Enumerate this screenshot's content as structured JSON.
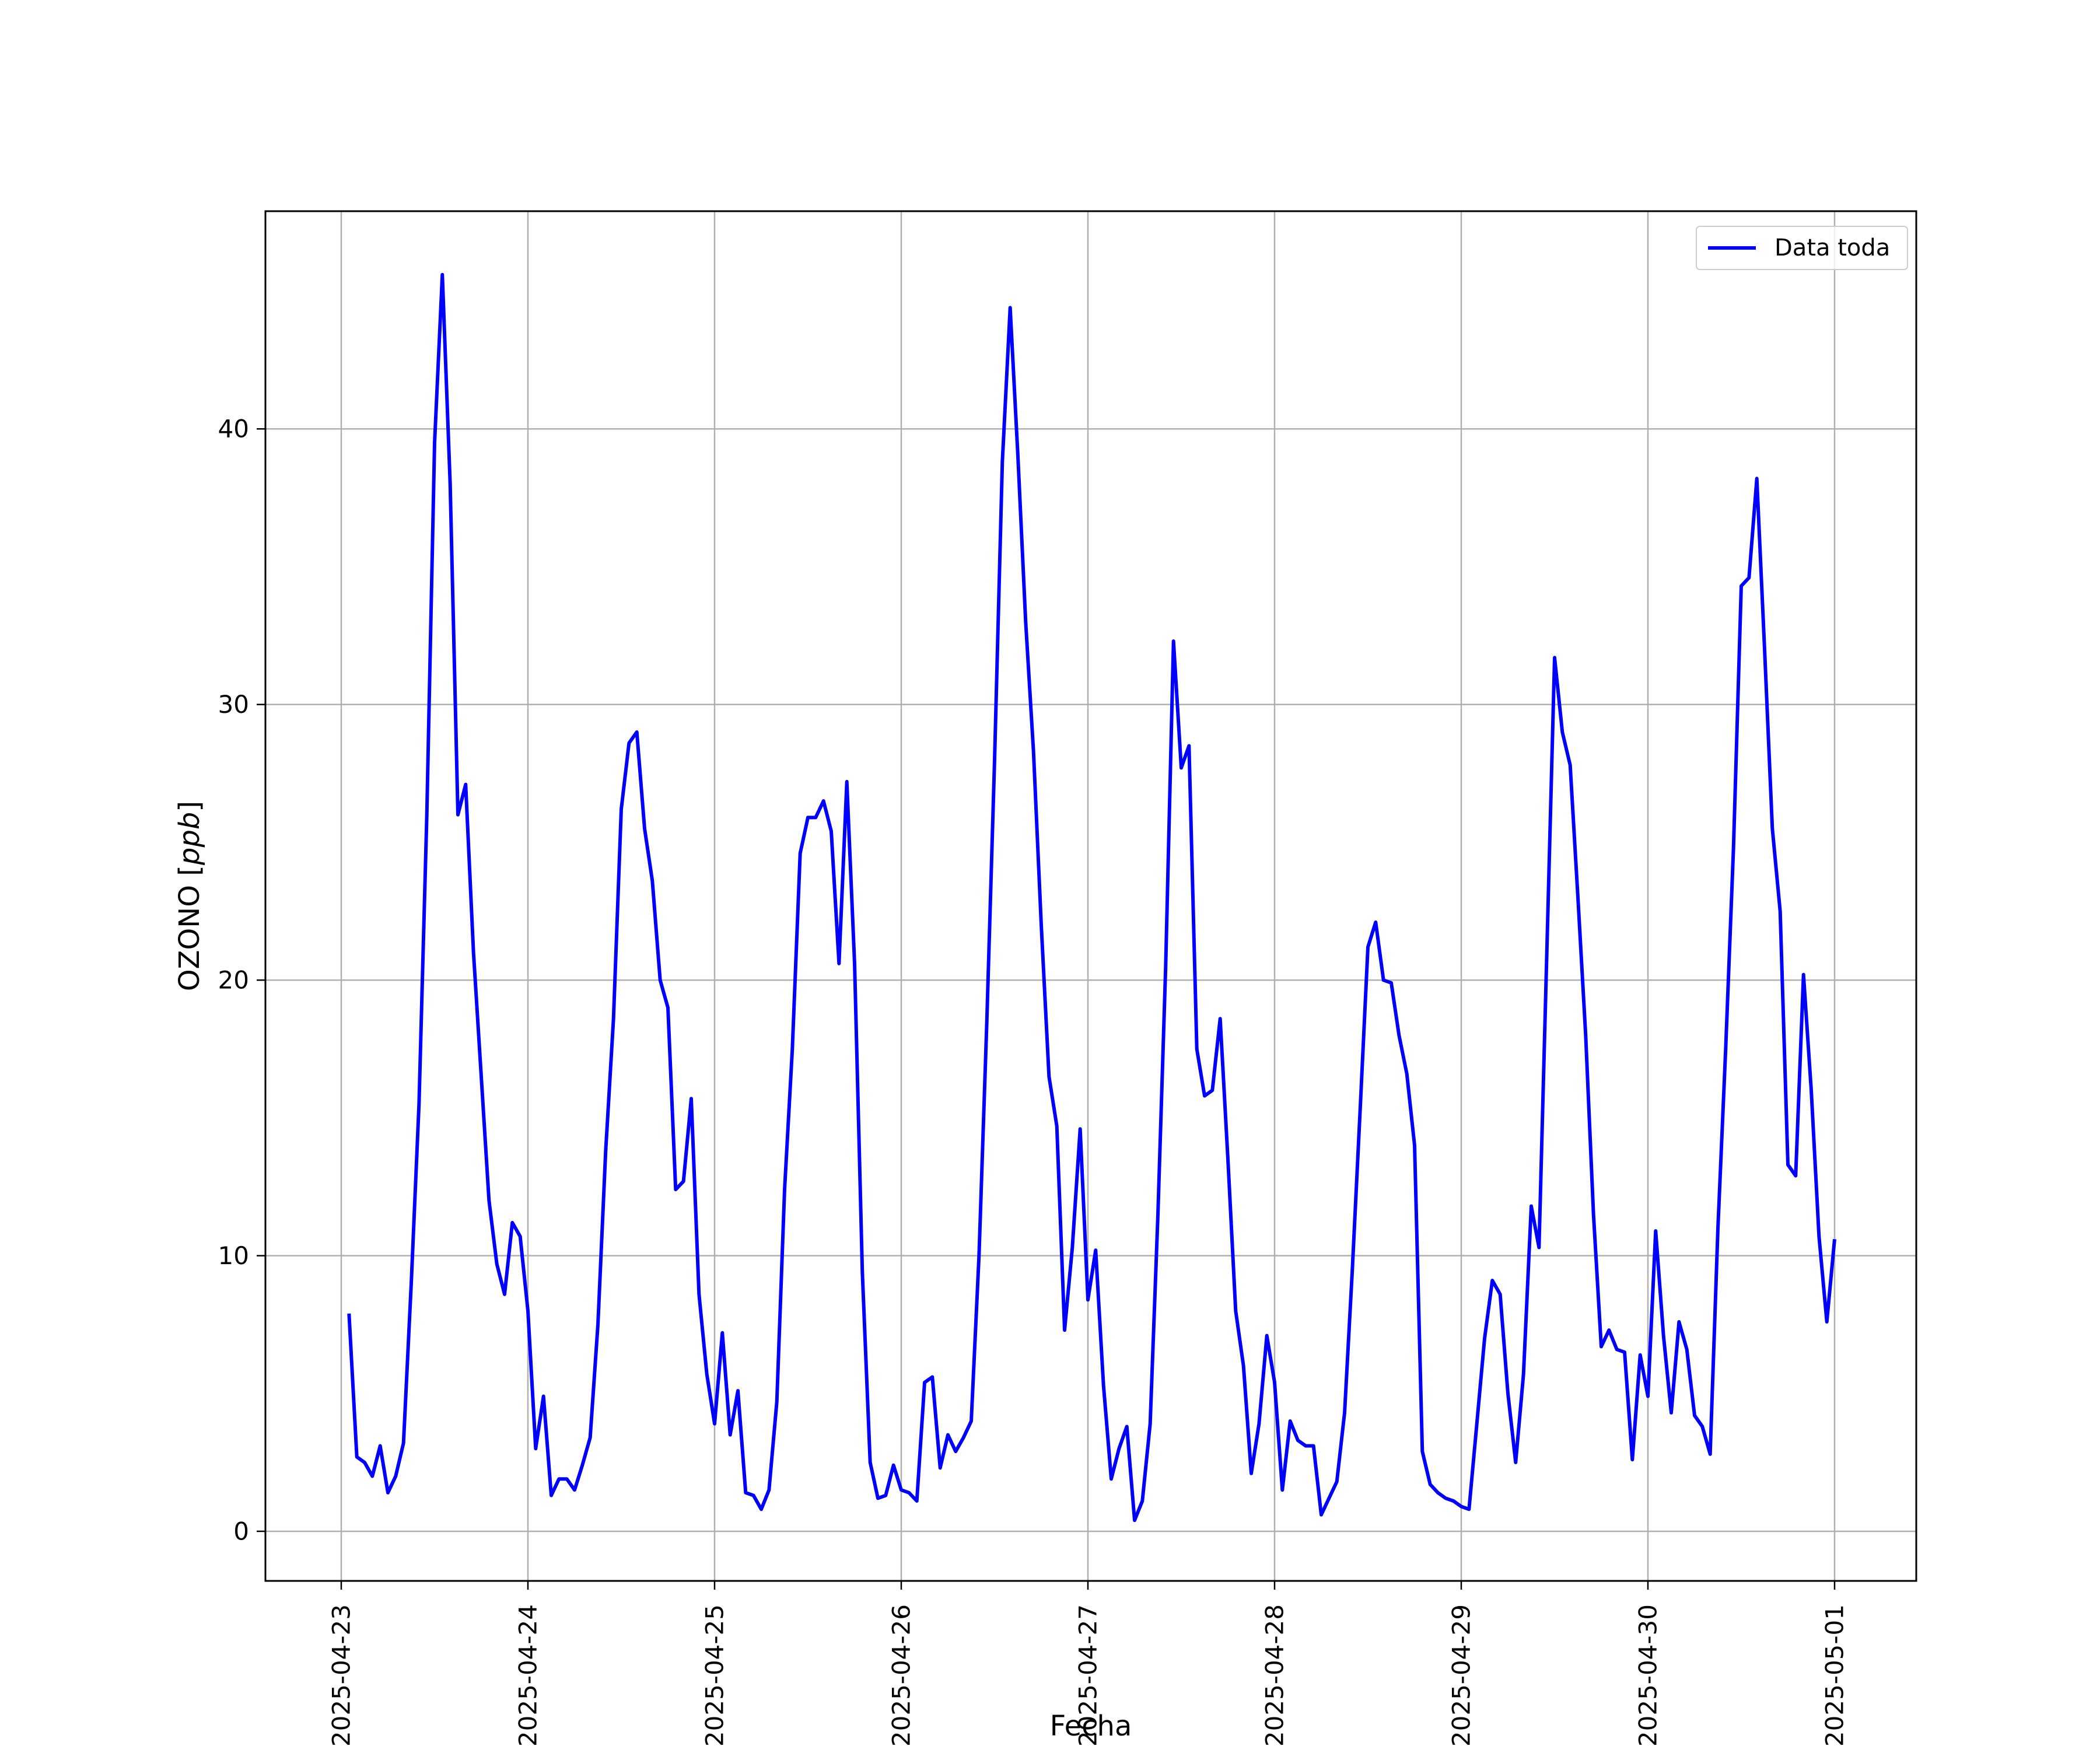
{
  "chart_data": {
    "type": "line",
    "xlabel": "Fecha",
    "ylabel": "OZONO [ppb]",
    "ylabel_parts": {
      "prefix": "OZONO [",
      "unit": "ppb",
      "suffix": "]"
    },
    "grid": true,
    "legend_position": "top-right",
    "ylim": [
      -1.8,
      47.9
    ],
    "xlim": [
      "2025-04-22T14:15",
      "2025-05-01T10:30"
    ],
    "x_ticks": [
      "2025-04-23",
      "2025-04-24",
      "2025-04-25",
      "2025-04-26",
      "2025-04-27",
      "2025-04-28",
      "2025-04-29",
      "2025-04-30",
      "2025-05-01"
    ],
    "y_ticks": [
      0,
      10,
      20,
      30,
      40
    ],
    "series": [
      {
        "name": "Data toda",
        "color": "#0000ff",
        "points": [
          [
            "2025-04-23T01:00",
            7.9
          ],
          [
            "2025-04-23T02:00",
            2.7
          ],
          [
            "2025-04-23T03:00",
            2.5
          ],
          [
            "2025-04-23T04:00",
            2.0
          ],
          [
            "2025-04-23T05:00",
            3.1
          ],
          [
            "2025-04-23T06:00",
            1.4
          ],
          [
            "2025-04-23T07:00",
            2.0
          ],
          [
            "2025-04-23T08:00",
            3.2
          ],
          [
            "2025-04-23T09:00",
            9.0
          ],
          [
            "2025-04-23T10:00",
            15.5
          ],
          [
            "2025-04-23T11:00",
            26.0
          ],
          [
            "2025-04-23T12:00",
            39.5
          ],
          [
            "2025-04-23T13:00",
            45.6
          ],
          [
            "2025-04-23T14:00",
            38.0
          ],
          [
            "2025-04-23T15:00",
            26.0
          ],
          [
            "2025-04-23T16:00",
            27.1
          ],
          [
            "2025-04-23T17:00",
            21.0
          ],
          [
            "2025-04-23T18:00",
            16.5
          ],
          [
            "2025-04-23T19:00",
            12.0
          ],
          [
            "2025-04-23T20:00",
            9.7
          ],
          [
            "2025-04-23T21:00",
            8.6
          ],
          [
            "2025-04-23T22:00",
            11.2
          ],
          [
            "2025-04-23T23:00",
            10.7
          ],
          [
            "2025-04-24T00:00",
            8.0
          ],
          [
            "2025-04-24T01:00",
            3.0
          ],
          [
            "2025-04-24T02:00",
            4.9
          ],
          [
            "2025-04-24T03:00",
            1.3
          ],
          [
            "2025-04-24T04:00",
            1.9
          ],
          [
            "2025-04-24T05:00",
            1.9
          ],
          [
            "2025-04-24T06:00",
            1.5
          ],
          [
            "2025-04-24T07:00",
            2.4
          ],
          [
            "2025-04-24T08:00",
            3.4
          ],
          [
            "2025-04-24T09:00",
            7.5
          ],
          [
            "2025-04-24T10:00",
            13.8
          ],
          [
            "2025-04-24T11:00",
            18.6
          ],
          [
            "2025-04-24T12:00",
            26.2
          ],
          [
            "2025-04-24T13:00",
            28.6
          ],
          [
            "2025-04-24T14:00",
            29.0
          ],
          [
            "2025-04-24T15:00",
            25.5
          ],
          [
            "2025-04-24T16:00",
            23.6
          ],
          [
            "2025-04-24T17:00",
            20.0
          ],
          [
            "2025-04-24T18:00",
            19.0
          ],
          [
            "2025-04-24T19:00",
            12.4
          ],
          [
            "2025-04-24T20:00",
            12.7
          ],
          [
            "2025-04-24T21:00",
            15.7
          ],
          [
            "2025-04-24T22:00",
            8.6
          ],
          [
            "2025-04-24T23:00",
            5.7
          ],
          [
            "2025-04-25T00:00",
            3.9
          ],
          [
            "2025-04-25T01:00",
            7.2
          ],
          [
            "2025-04-25T02:00",
            3.5
          ],
          [
            "2025-04-25T03:00",
            5.1
          ],
          [
            "2025-04-25T04:00",
            1.4
          ],
          [
            "2025-04-25T05:00",
            1.3
          ],
          [
            "2025-04-25T06:00",
            0.8
          ],
          [
            "2025-04-25T07:00",
            1.5
          ],
          [
            "2025-04-25T08:00",
            4.7
          ],
          [
            "2025-04-25T09:00",
            12.4
          ],
          [
            "2025-04-25T10:00",
            17.5
          ],
          [
            "2025-04-25T11:00",
            24.6
          ],
          [
            "2025-04-25T12:00",
            25.9
          ],
          [
            "2025-04-25T13:00",
            25.9
          ],
          [
            "2025-04-25T14:00",
            26.5
          ],
          [
            "2025-04-25T15:00",
            25.4
          ],
          [
            "2025-04-25T16:00",
            20.6
          ],
          [
            "2025-04-25T17:00",
            27.2
          ],
          [
            "2025-04-25T18:00",
            20.6
          ],
          [
            "2025-04-25T19:00",
            9.4
          ],
          [
            "2025-04-25T20:00",
            2.5
          ],
          [
            "2025-04-25T21:00",
            1.2
          ],
          [
            "2025-04-25T22:00",
            1.3
          ],
          [
            "2025-04-25T23:00",
            2.4
          ],
          [
            "2025-04-26T00:00",
            1.5
          ],
          [
            "2025-04-26T01:00",
            1.4
          ],
          [
            "2025-04-26T02:00",
            1.1
          ],
          [
            "2025-04-26T03:00",
            5.4
          ],
          [
            "2025-04-26T04:00",
            5.6
          ],
          [
            "2025-04-26T05:00",
            2.3
          ],
          [
            "2025-04-26T06:00",
            3.5
          ],
          [
            "2025-04-26T07:00",
            2.9
          ],
          [
            "2025-04-26T08:00",
            3.4
          ],
          [
            "2025-04-26T09:00",
            4.0
          ],
          [
            "2025-04-26T10:00",
            10.0
          ],
          [
            "2025-04-26T11:00",
            18.5
          ],
          [
            "2025-04-26T12:00",
            28.0
          ],
          [
            "2025-04-26T13:00",
            38.8
          ],
          [
            "2025-04-26T14:00",
            44.4
          ],
          [
            "2025-04-26T15:00",
            39.0
          ],
          [
            "2025-04-26T16:00",
            33.0
          ],
          [
            "2025-04-26T17:00",
            28.3
          ],
          [
            "2025-04-26T18:00",
            22.0
          ],
          [
            "2025-04-26T19:00",
            16.5
          ],
          [
            "2025-04-26T20:00",
            14.7
          ],
          [
            "2025-04-26T21:00",
            7.3
          ],
          [
            "2025-04-26T22:00",
            10.3
          ],
          [
            "2025-04-26T23:00",
            14.6
          ],
          [
            "2025-04-27T00:00",
            8.4
          ],
          [
            "2025-04-27T01:00",
            10.2
          ],
          [
            "2025-04-27T02:00",
            5.3
          ],
          [
            "2025-04-27T03:00",
            1.9
          ],
          [
            "2025-04-27T04:00",
            3.0
          ],
          [
            "2025-04-27T05:00",
            3.8
          ],
          [
            "2025-04-27T06:00",
            0.4
          ],
          [
            "2025-04-27T07:00",
            1.1
          ],
          [
            "2025-04-27T08:00",
            3.9
          ],
          [
            "2025-04-27T09:00",
            11.5
          ],
          [
            "2025-04-27T10:00",
            20.5
          ],
          [
            "2025-04-27T11:00",
            32.3
          ],
          [
            "2025-04-27T12:00",
            27.7
          ],
          [
            "2025-04-27T13:00",
            28.5
          ],
          [
            "2025-04-27T14:00",
            17.5
          ],
          [
            "2025-04-27T15:00",
            15.8
          ],
          [
            "2025-04-27T16:00",
            16.0
          ],
          [
            "2025-04-27T17:00",
            18.6
          ],
          [
            "2025-04-27T18:00",
            13.5
          ],
          [
            "2025-04-27T19:00",
            8.0
          ],
          [
            "2025-04-27T20:00",
            6.0
          ],
          [
            "2025-04-27T21:00",
            2.1
          ],
          [
            "2025-04-27T22:00",
            3.9
          ],
          [
            "2025-04-27T23:00",
            7.1
          ],
          [
            "2025-04-28T00:00",
            5.4
          ],
          [
            "2025-04-28T01:00",
            1.5
          ],
          [
            "2025-04-28T02:00",
            4.0
          ],
          [
            "2025-04-28T03:00",
            3.3
          ],
          [
            "2025-04-28T04:00",
            3.1
          ],
          [
            "2025-04-28T05:00",
            3.1
          ],
          [
            "2025-04-28T06:00",
            0.6
          ],
          [
            "2025-04-28T07:00",
            1.2
          ],
          [
            "2025-04-28T08:00",
            1.8
          ],
          [
            "2025-04-28T09:00",
            4.3
          ],
          [
            "2025-04-28T10:00",
            9.5
          ],
          [
            "2025-04-28T11:00",
            15.3
          ],
          [
            "2025-04-28T12:00",
            21.2
          ],
          [
            "2025-04-28T13:00",
            22.1
          ],
          [
            "2025-04-28T14:00",
            20.0
          ],
          [
            "2025-04-28T15:00",
            19.9
          ],
          [
            "2025-04-28T16:00",
            18.0
          ],
          [
            "2025-04-28T17:00",
            16.6
          ],
          [
            "2025-04-28T18:00",
            14.0
          ],
          [
            "2025-04-28T19:00",
            2.9
          ],
          [
            "2025-04-28T20:00",
            1.7
          ],
          [
            "2025-04-28T21:00",
            1.4
          ],
          [
            "2025-04-28T22:00",
            1.2
          ],
          [
            "2025-04-28T23:00",
            1.1
          ],
          [
            "2025-04-29T00:00",
            0.9
          ],
          [
            "2025-04-29T01:00",
            0.8
          ],
          [
            "2025-04-29T02:00",
            3.9
          ],
          [
            "2025-04-29T03:00",
            7.0
          ],
          [
            "2025-04-29T04:00",
            9.1
          ],
          [
            "2025-04-29T05:00",
            8.6
          ],
          [
            "2025-04-29T06:00",
            5.0
          ],
          [
            "2025-04-29T07:00",
            2.5
          ],
          [
            "2025-04-29T08:00",
            5.7
          ],
          [
            "2025-04-29T09:00",
            11.8
          ],
          [
            "2025-04-29T10:00",
            10.3
          ],
          [
            "2025-04-29T11:00",
            21.0
          ],
          [
            "2025-04-29T12:00",
            31.7
          ],
          [
            "2025-04-29T13:00",
            29.0
          ],
          [
            "2025-04-29T14:00",
            27.8
          ],
          [
            "2025-04-29T15:00",
            23.0
          ],
          [
            "2025-04-29T16:00",
            18.0
          ],
          [
            "2025-04-29T17:00",
            11.5
          ],
          [
            "2025-04-29T18:00",
            6.7
          ],
          [
            "2025-04-29T19:00",
            7.3
          ],
          [
            "2025-04-29T20:00",
            6.6
          ],
          [
            "2025-04-29T21:00",
            6.5
          ],
          [
            "2025-04-29T22:00",
            2.6
          ],
          [
            "2025-04-29T23:00",
            6.4
          ],
          [
            "2025-04-30T00:00",
            4.9
          ],
          [
            "2025-04-30T01:00",
            10.9
          ],
          [
            "2025-04-30T02:00",
            7.1
          ],
          [
            "2025-04-30T03:00",
            4.3
          ],
          [
            "2025-04-30T04:00",
            7.6
          ],
          [
            "2025-04-30T05:00",
            6.6
          ],
          [
            "2025-04-30T06:00",
            4.2
          ],
          [
            "2025-04-30T07:00",
            3.8
          ],
          [
            "2025-04-30T08:00",
            2.8
          ],
          [
            "2025-04-30T09:00",
            11.0
          ],
          [
            "2025-04-30T10:00",
            17.5
          ],
          [
            "2025-04-30T11:00",
            24.8
          ],
          [
            "2025-04-30T12:00",
            34.3
          ],
          [
            "2025-04-30T13:00",
            34.6
          ],
          [
            "2025-04-30T14:00",
            38.2
          ],
          [
            "2025-04-30T15:00",
            32.0
          ],
          [
            "2025-04-30T16:00",
            25.5
          ],
          [
            "2025-04-30T17:00",
            22.5
          ],
          [
            "2025-04-30T18:00",
            13.3
          ],
          [
            "2025-04-30T19:00",
            12.9
          ],
          [
            "2025-04-30T20:00",
            20.2
          ],
          [
            "2025-04-30T21:00",
            16.0
          ],
          [
            "2025-04-30T22:00",
            10.7
          ],
          [
            "2025-04-30T23:00",
            7.6
          ],
          [
            "2025-05-01T00:00",
            10.6
          ]
        ]
      }
    ]
  }
}
